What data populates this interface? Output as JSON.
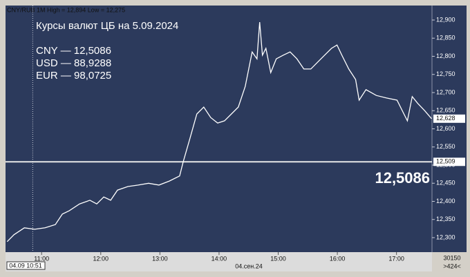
{
  "chart_data": {
    "type": "line",
    "header": "CNY/RUB 1M High = 12,894 Low = 12,275",
    "title": "Курсы валют ЦБ на 5.09.2024",
    "annotations": [
      "CNY — 12,5086",
      "USD — 88,9288",
      "EUR — 98,0725"
    ],
    "reference_rate": {
      "value": 12.5086,
      "label": "12,5086"
    },
    "level_line": {
      "value": 12.509,
      "label": "12,509"
    },
    "last_price": {
      "value": 12.628,
      "label": "12,628"
    },
    "cursor": {
      "value": 10.85,
      "label": "04.09 10:51"
    },
    "date_label": "04.сен.24",
    "footer_texts": [
      "30150",
      ">424<"
    ],
    "color": "#ffffff",
    "x": [
      10.417,
      10.533,
      10.708,
      10.883,
      11.058,
      11.233,
      11.35,
      11.467,
      11.642,
      11.817,
      11.933,
      12.05,
      12.167,
      12.283,
      12.459,
      12.634,
      12.809,
      12.984,
      13.159,
      13.334,
      13.392,
      13.509,
      13.625,
      13.742,
      13.859,
      13.976,
      14.092,
      14.209,
      14.326,
      14.442,
      14.559,
      14.641,
      14.687,
      14.734,
      14.792,
      14.874,
      14.967,
      15.084,
      15.201,
      15.317,
      15.434,
      15.551,
      15.667,
      15.784,
      15.901,
      15.994,
      16.076,
      16.193,
      16.309,
      16.368,
      16.484,
      16.659,
      16.834,
      17.009,
      17.126,
      17.184,
      17.266,
      17.359,
      17.476,
      17.593
    ],
    "values": [
      12.289,
      12.308,
      12.327,
      12.323,
      12.327,
      12.336,
      12.365,
      12.374,
      12.393,
      12.403,
      12.393,
      12.412,
      12.403,
      12.431,
      12.441,
      12.445,
      12.45,
      12.445,
      12.456,
      12.47,
      12.508,
      12.574,
      12.641,
      12.66,
      12.631,
      12.616,
      12.622,
      12.641,
      12.66,
      12.717,
      12.812,
      12.793,
      12.894,
      12.803,
      12.822,
      12.755,
      12.793,
      12.803,
      12.812,
      12.793,
      12.765,
      12.765,
      12.784,
      12.803,
      12.822,
      12.831,
      12.803,
      12.765,
      12.736,
      12.679,
      12.708,
      12.692,
      12.685,
      12.679,
      12.641,
      12.622,
      12.689,
      12.67,
      12.65,
      12.628
    ],
    "xlim": [
      10.39,
      17.6
    ],
    "ylim": [
      12.26,
      12.94
    ],
    "xticks": [
      {
        "value": 11,
        "label": "11:00"
      },
      {
        "value": 12,
        "label": "12:00"
      },
      {
        "value": 13,
        "label": "13:00"
      },
      {
        "value": 14,
        "label": "14:00"
      },
      {
        "value": 15,
        "label": "15:00"
      },
      {
        "value": 16,
        "label": "16:00"
      },
      {
        "value": 17,
        "label": "17:00"
      }
    ],
    "yticks": [
      {
        "value": 12.3,
        "label": "12,300"
      },
      {
        "value": 12.35,
        "label": "12,350"
      },
      {
        "value": 12.4,
        "label": "12,400"
      },
      {
        "value": 12.45,
        "label": "12,450"
      },
      {
        "value": 12.5,
        "label": "12,500"
      },
      {
        "value": 12.55,
        "label": "12,550"
      },
      {
        "value": 12.6,
        "label": "12,600"
      },
      {
        "value": 12.65,
        "label": "12,650"
      },
      {
        "value": 12.7,
        "label": "12,700"
      },
      {
        "value": 12.75,
        "label": "12,750"
      },
      {
        "value": 12.8,
        "label": "12,800"
      },
      {
        "value": 12.85,
        "label": "12,850"
      },
      {
        "value": 12.9,
        "label": "12,900"
      }
    ]
  }
}
